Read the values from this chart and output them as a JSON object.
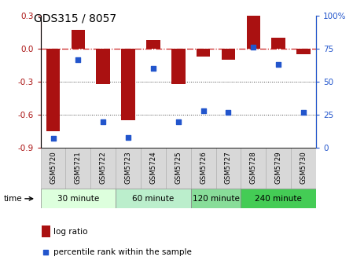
{
  "title": "GDS315 / 8057",
  "samples": [
    "GSM5720",
    "GSM5721",
    "GSM5722",
    "GSM5723",
    "GSM5724",
    "GSM5725",
    "GSM5726",
    "GSM5727",
    "GSM5728",
    "GSM5729",
    "GSM5730"
  ],
  "log_ratio": [
    -0.75,
    0.17,
    -0.32,
    -0.65,
    0.08,
    -0.32,
    -0.07,
    -0.1,
    0.3,
    0.1,
    -0.05
  ],
  "percentile": [
    7,
    67,
    20,
    8,
    60,
    20,
    28,
    27,
    76,
    63,
    27
  ],
  "ylim_left": [
    -0.9,
    0.3
  ],
  "ylim_right": [
    0,
    100
  ],
  "yticks_left": [
    -0.9,
    -0.6,
    -0.3,
    0.0,
    0.3
  ],
  "yticks_right": [
    0,
    25,
    50,
    75,
    100
  ],
  "ytick_labels_right": [
    "0",
    "25",
    "50",
    "75",
    "100%"
  ],
  "bar_color": "#aa1111",
  "dot_color": "#2255cc",
  "hline_color": "#cc2222",
  "dotted_line_color": "#444444",
  "groups": [
    {
      "label": "30 minute",
      "start": 0,
      "end": 2,
      "color": "#ddffdd"
    },
    {
      "label": "60 minute",
      "start": 3,
      "end": 5,
      "color": "#bbeecc"
    },
    {
      "label": "120 minute",
      "start": 6,
      "end": 7,
      "color": "#88dd99"
    },
    {
      "label": "240 minute",
      "start": 8,
      "end": 10,
      "color": "#44cc55"
    }
  ],
  "legend_bar_label": "log ratio",
  "legend_dot_label": "percentile rank within the sample",
  "time_label": "time"
}
